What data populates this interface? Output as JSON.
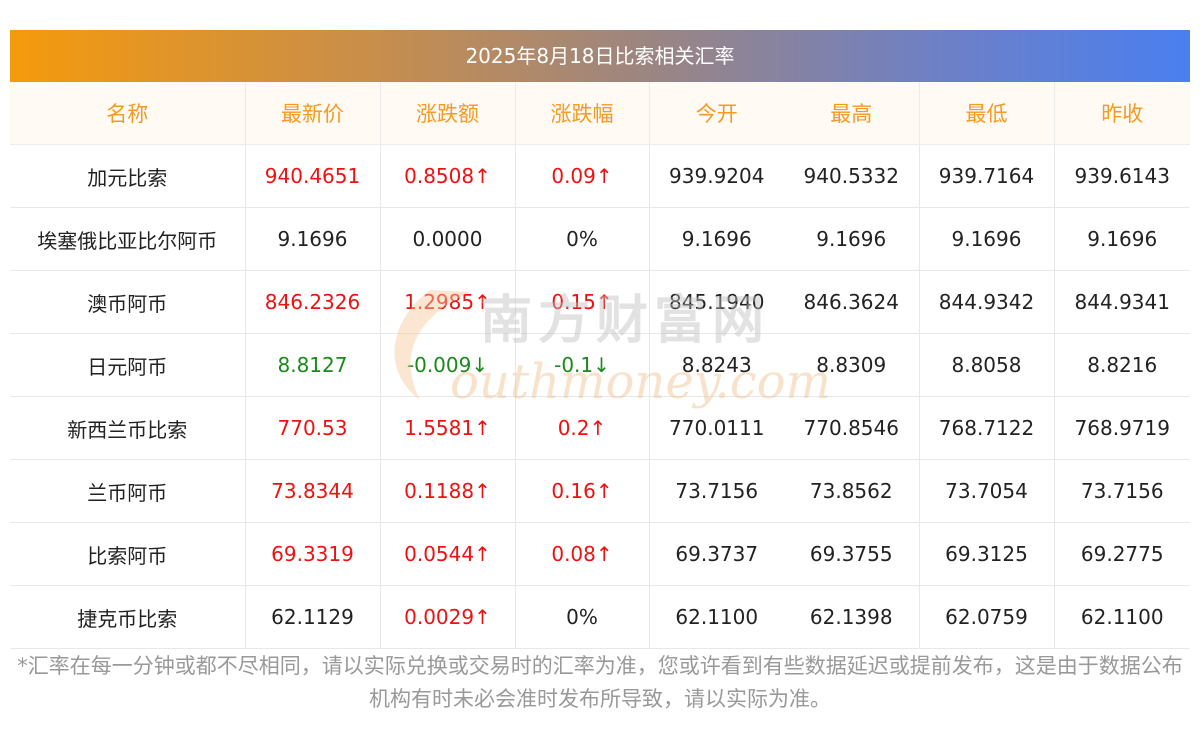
{
  "title": "2025年8月18日比索相关汇率",
  "headers": [
    "名称",
    "最新价",
    "涨跌额",
    "涨跌幅",
    "今开",
    "最高",
    "最低",
    "昨收"
  ],
  "rows": [
    {
      "name": "加元比索",
      "latest": "940.4651",
      "change": "0.8508↑",
      "pct": "0.09↑",
      "open": "939.9204",
      "high": "940.5332",
      "low": "939.7164",
      "prev": "939.6143",
      "trend": "up"
    },
    {
      "name": "埃塞俄比亚比尔阿币",
      "latest": "9.1696",
      "change": "0.0000",
      "pct": "0%",
      "open": "9.1696",
      "high": "9.1696",
      "low": "9.1696",
      "prev": "9.1696",
      "trend": "flat"
    },
    {
      "name": "澳币阿币",
      "latest": "846.2326",
      "change": "1.2985↑",
      "pct": "0.15↑",
      "open": "845.1940",
      "high": "846.3624",
      "low": "844.9342",
      "prev": "844.9341",
      "trend": "up"
    },
    {
      "name": "日元阿币",
      "latest": "8.8127",
      "change": "-0.009↓",
      "pct": "-0.1↓",
      "open": "8.8243",
      "high": "8.8309",
      "low": "8.8058",
      "prev": "8.8216",
      "trend": "down"
    },
    {
      "name": "新西兰币比索",
      "latest": "770.53",
      "change": "1.5581↑",
      "pct": "0.2↑",
      "open": "770.0111",
      "high": "770.8546",
      "low": "768.7122",
      "prev": "768.9719",
      "trend": "up"
    },
    {
      "name": "兰币阿币",
      "latest": "73.8344",
      "change": "0.1188↑",
      "pct": "0.16↑",
      "open": "73.7156",
      "high": "73.8562",
      "low": "73.7054",
      "prev": "73.7156",
      "trend": "up"
    },
    {
      "name": "比索阿币",
      "latest": "69.3319",
      "change": "0.0544↑",
      "pct": "0.08↑",
      "open": "69.3737",
      "high": "69.3755",
      "low": "69.3125",
      "prev": "69.2775",
      "trend": "up"
    },
    {
      "name": "捷克币比索",
      "latest": "62.1129",
      "change": "0.0029↑",
      "pct": "0%",
      "open": "62.1100",
      "high": "62.1398",
      "low": "62.0759",
      "prev": "62.1100",
      "trend": "mixed"
    }
  ],
  "watermark": {
    "cn": "南方财富网",
    "en": "outhmoney.com"
  },
  "note": "*汇率在每一分钟或都不尽相同，请以实际兑换或交易时的汇率为准，您或许看到有些数据延迟或提前发布，这是由于数据公布机构有时未必会准时发布所导致，请以实际为准。",
  "colors": {
    "up": "#ee1111",
    "down": "#1a8a1a",
    "header_text": "#f59a23",
    "gradient_start": "#f59a0c",
    "gradient_end": "#4a7ff0"
  }
}
